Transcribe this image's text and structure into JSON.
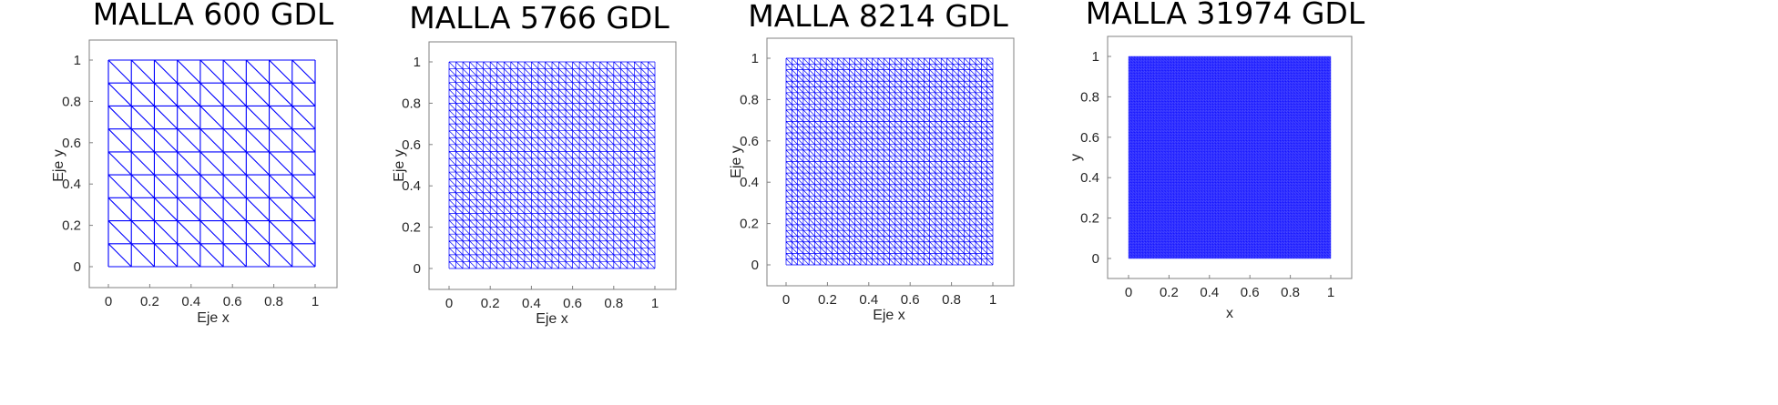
{
  "figure": {
    "panels": [
      {
        "title": "MALLA 600 GDL",
        "xlabel": "Eje x",
        "ylabel": "Eje y",
        "xticks": [
          "0",
          "0.2",
          "0.4",
          "0.6",
          "0.8",
          "1"
        ],
        "yticks": [
          "0",
          "0.2",
          "0.4",
          "0.6",
          "0.8",
          "1"
        ],
        "mesh_divisions": 9
      },
      {
        "title": "MALLA  5766 GDL",
        "xlabel": "Eje x",
        "ylabel": "Eje y",
        "xticks": [
          "0",
          "0.2",
          "0.4",
          "0.6",
          "0.8",
          "1"
        ],
        "yticks": [
          "0",
          "0.2",
          "0.4",
          "0.6",
          "0.8",
          "1"
        ],
        "mesh_divisions": 30
      },
      {
        "title": "MALLA  8214 GDL",
        "xlabel": "Eje x",
        "ylabel": "Eje y",
        "xticks": [
          "0",
          "0.2",
          "0.4",
          "0.6",
          "0.8",
          "1"
        ],
        "yticks": [
          "0",
          "0.2",
          "0.4",
          "0.6",
          "0.8",
          "1"
        ],
        "mesh_divisions": 36
      },
      {
        "title": "MALLA  31974 GDL",
        "xlabel": "x",
        "ylabel": "y",
        "xticks": [
          "0",
          "0.2",
          "0.4",
          "0.6",
          "0.8",
          "1"
        ],
        "yticks": [
          "0",
          "0.2",
          "0.4",
          "0.6",
          "0.8",
          "1"
        ],
        "mesh_divisions": 72
      }
    ],
    "mesh_color": "#0000ff",
    "axes_color": "#808080",
    "text_color": "#262626"
  }
}
